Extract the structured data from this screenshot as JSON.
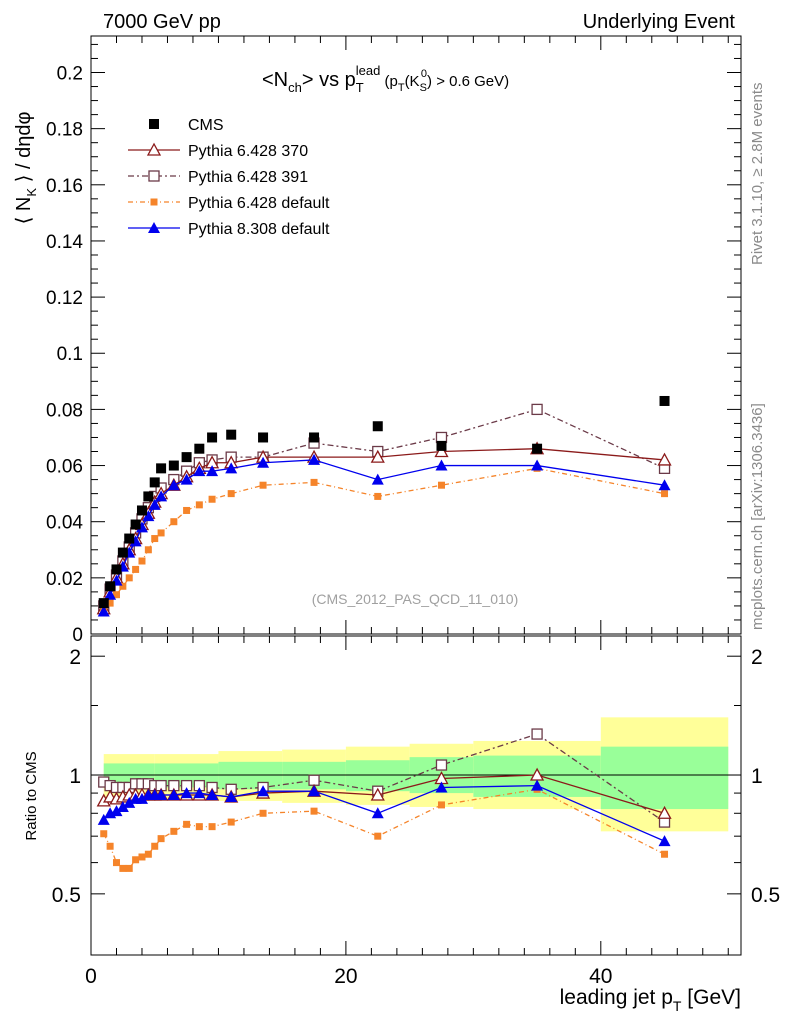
{
  "header": {
    "left": "7000 GeV pp",
    "right": "Underlying Event"
  },
  "side_labels": {
    "rivet": "Rivet 3.1.10, ≥ 2.8M events",
    "mcplots": "mcplots.cern.ch [arXiv:1306.3436]"
  },
  "analysis_id": "(CMS_2012_PAS_QCD_11_010)",
  "colors": {
    "cms": "#000000",
    "p370": "#8b1a1a",
    "p391": "#6b3a48",
    "p6def": "#f5842a",
    "p8def": "#0000ee",
    "band_green": "#99ff99",
    "band_yellow": "#ffff99"
  },
  "chart_data": [
    {
      "type": "scatter",
      "panel": "main",
      "title": "<N_ch> vs p_T^lead (p_T(K_S^0) > 0.6 GeV)",
      "ylabel": "⟨ N_K ⟩ / dηdφ",
      "xlim": [
        0,
        51
      ],
      "ylim": [
        0,
        0.213
      ],
      "y_ticks": [
        "0",
        "0.02",
        "0.04",
        "0.06",
        "0.08",
        "0.1",
        "0.12",
        "0.14",
        "0.16",
        "0.18",
        "0.2"
      ],
      "legend_position": "top-left",
      "x": [
        1.0,
        1.5,
        2.0,
        2.5,
        3.0,
        3.5,
        4.0,
        4.5,
        5.0,
        5.5,
        6.5,
        7.5,
        8.5,
        9.5,
        11.0,
        13.5,
        17.5,
        22.5,
        27.5,
        35.0,
        45.0
      ],
      "series": [
        {
          "name": "CMS",
          "key": "cms",
          "values": [
            0.011,
            0.017,
            0.023,
            0.029,
            0.034,
            0.039,
            0.044,
            0.049,
            0.054,
            0.059,
            0.06,
            0.063,
            0.066,
            0.07,
            0.071,
            0.07,
            0.07,
            0.074,
            0.067,
            0.066,
            0.083
          ]
        },
        {
          "name": "Pythia 6.428 370",
          "key": "p370",
          "values": [
            0.009,
            0.015,
            0.02,
            0.025,
            0.03,
            0.034,
            0.039,
            0.043,
            0.047,
            0.05,
            0.053,
            0.056,
            0.059,
            0.061,
            0.061,
            0.063,
            0.063,
            0.063,
            0.065,
            0.066,
            0.062
          ]
        },
        {
          "name": "Pythia 6.428 391",
          "key": "p391",
          "values": [
            0.01,
            0.016,
            0.021,
            0.026,
            0.031,
            0.036,
            0.041,
            0.045,
            0.049,
            0.052,
            0.055,
            0.058,
            0.061,
            0.062,
            0.063,
            0.063,
            0.068,
            0.065,
            0.07,
            0.08,
            0.059
          ]
        },
        {
          "name": "Pythia 6.428 default",
          "key": "p6def",
          "values": [
            0.008,
            0.011,
            0.014,
            0.017,
            0.02,
            0.023,
            0.026,
            0.03,
            0.034,
            0.036,
            0.04,
            0.044,
            0.046,
            0.048,
            0.05,
            0.053,
            0.054,
            0.049,
            0.053,
            0.059,
            0.05
          ]
        },
        {
          "name": "Pythia 8.308 default",
          "key": "p8def",
          "values": [
            0.008,
            0.014,
            0.019,
            0.024,
            0.029,
            0.033,
            0.038,
            0.042,
            0.046,
            0.049,
            0.053,
            0.055,
            0.058,
            0.058,
            0.059,
            0.061,
            0.062,
            0.055,
            0.06,
            0.06,
            0.053
          ]
        }
      ]
    },
    {
      "type": "scatter",
      "panel": "ratio",
      "ylabel": "Ratio to CMS",
      "xlabel": "leading jet p_T [GeV]",
      "xlim": [
        0,
        51
      ],
      "ylim": [
        0.35,
        2.25
      ],
      "y_ticks": [
        "0.5",
        "1",
        "2"
      ],
      "x_ticks": [
        "0",
        "20",
        "40"
      ],
      "reference_line": 1,
      "x": [
        1.0,
        1.5,
        2.0,
        2.5,
        3.0,
        3.5,
        4.0,
        4.5,
        5.0,
        5.5,
        6.5,
        7.5,
        8.5,
        9.5,
        11.0,
        13.5,
        17.5,
        22.5,
        27.5,
        35.0,
        45.0
      ],
      "bands": {
        "edges": [
          1,
          5,
          10,
          15,
          20,
          25,
          30,
          40,
          50
        ],
        "green": [
          [
            0.93,
            1.07
          ],
          [
            0.93,
            1.07
          ],
          [
            0.92,
            1.08
          ],
          [
            0.92,
            1.08
          ],
          [
            0.91,
            1.09
          ],
          [
            0.9,
            1.11
          ],
          [
            0.88,
            1.12
          ],
          [
            0.82,
            1.18
          ]
        ],
        "yellow": [
          [
            0.87,
            1.13
          ],
          [
            0.87,
            1.13
          ],
          [
            0.86,
            1.15
          ],
          [
            0.85,
            1.16
          ],
          [
            0.84,
            1.18
          ],
          [
            0.83,
            1.2
          ],
          [
            0.82,
            1.22
          ],
          [
            0.72,
            1.4
          ]
        ]
      },
      "series": [
        {
          "name": "Pythia 6.428 370",
          "key": "p370",
          "values": [
            0.86,
            0.88,
            0.87,
            0.88,
            0.89,
            0.89,
            0.89,
            0.89,
            0.89,
            0.89,
            0.89,
            0.89,
            0.89,
            0.89,
            0.88,
            0.9,
            0.91,
            0.89,
            0.98,
            1.0,
            0.8
          ]
        },
        {
          "name": "Pythia 6.428 391",
          "key": "p391",
          "values": [
            0.96,
            0.94,
            0.93,
            0.93,
            0.93,
            0.95,
            0.95,
            0.95,
            0.94,
            0.94,
            0.94,
            0.94,
            0.94,
            0.93,
            0.92,
            0.93,
            0.97,
            0.91,
            1.06,
            1.27,
            0.76
          ]
        },
        {
          "name": "Pythia 6.428 default",
          "key": "p6def",
          "values": [
            0.71,
            0.66,
            0.6,
            0.58,
            0.58,
            0.61,
            0.62,
            0.63,
            0.66,
            0.69,
            0.72,
            0.75,
            0.74,
            0.74,
            0.76,
            0.8,
            0.81,
            0.7,
            0.84,
            0.92,
            0.63
          ]
        },
        {
          "name": "Pythia 8.308 default",
          "key": "p8def",
          "values": [
            0.77,
            0.8,
            0.81,
            0.83,
            0.85,
            0.87,
            0.87,
            0.89,
            0.89,
            0.89,
            0.89,
            0.9,
            0.9,
            0.89,
            0.88,
            0.91,
            0.91,
            0.8,
            0.93,
            0.94,
            0.68
          ]
        }
      ]
    }
  ]
}
